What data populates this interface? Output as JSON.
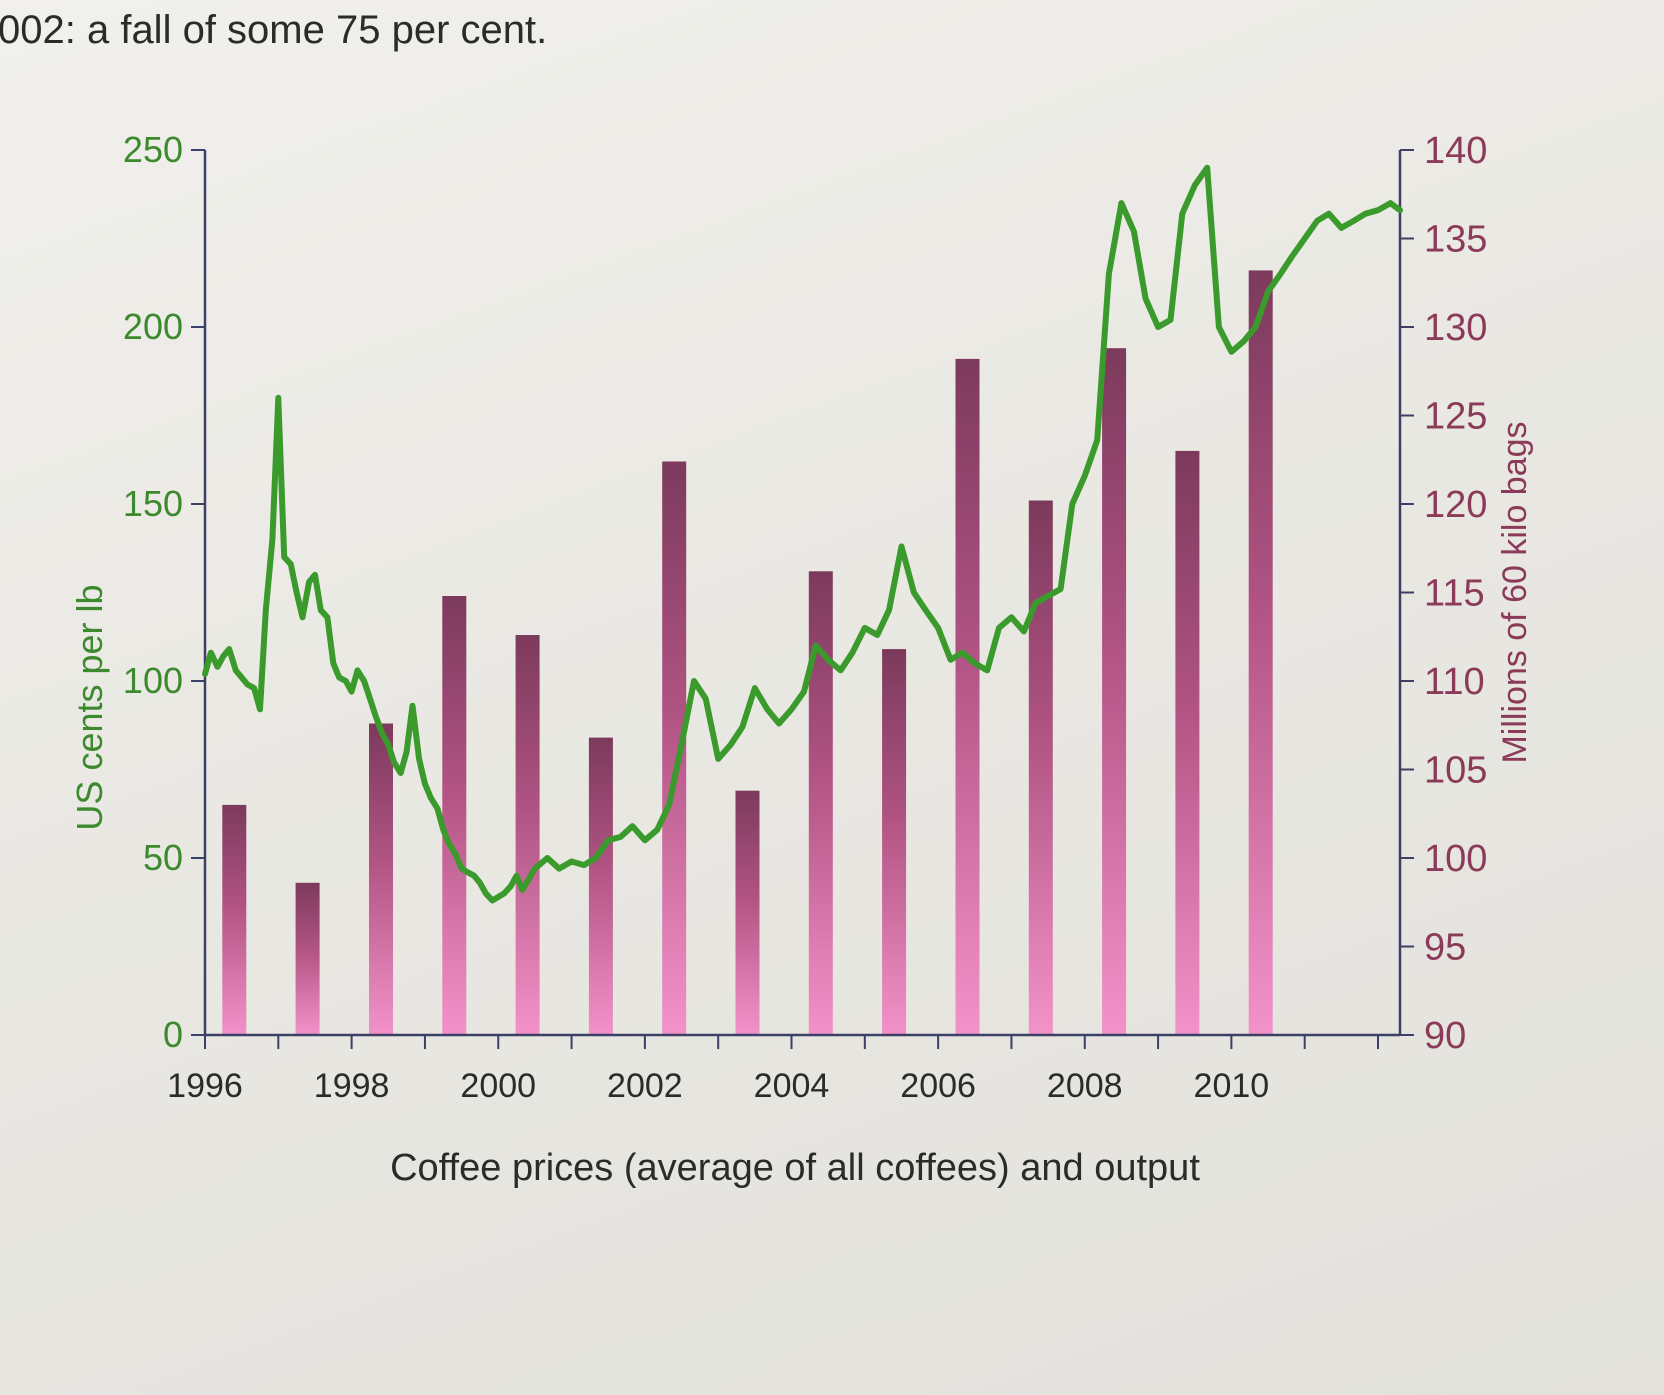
{
  "intro_text": "002: a fall of some 75 per cent.",
  "chart_data": {
    "type": "bar+line",
    "title": "",
    "caption": "Coffee prices (average of all coffees) and output",
    "xlabel": "",
    "ylabel_left": "US cents per lb",
    "ylabel_right": "Millions of 60 kilo bags",
    "x_tick_labels": [
      "1996",
      "1998",
      "2000",
      "2002",
      "2004",
      "2006",
      "2008",
      "2010"
    ],
    "x_ticks": [
      1996,
      1998,
      2000,
      2002,
      2004,
      2006,
      2008,
      2010
    ],
    "xlim": [
      1996,
      2012.3
    ],
    "ylim_left": [
      0,
      250
    ],
    "yticks_left": [
      0,
      50,
      100,
      150,
      200,
      250
    ],
    "ylim_right": [
      90,
      140
    ],
    "yticks_right": [
      90,
      95,
      100,
      105,
      110,
      115,
      120,
      125,
      130,
      135,
      140
    ],
    "grid": false,
    "colors": {
      "line": "#3a9a2c",
      "bar_top": "#8a3f63",
      "bar_bottom": "#f08cc4",
      "left_axis_text": "#3d8a2e",
      "right_axis_text": "#8b3a5a",
      "axis_line": "#3c3f66"
    },
    "bar_series": {
      "axis": "right",
      "unit": "Millions of 60 kilo bags",
      "x": [
        1996.4,
        1997.4,
        1998.4,
        1999.4,
        2000.4,
        2001.4,
        2002.4,
        2003.4,
        2004.4,
        2005.4,
        2006.4,
        2007.4,
        2008.4,
        2009.4,
        2010.4
      ],
      "values": [
        103.0,
        98.6,
        107.6,
        114.8,
        112.6,
        106.8,
        122.4,
        103.8,
        116.2,
        111.8,
        128.2,
        120.2,
        128.8,
        123.0,
        133.2
      ]
    },
    "line_series": {
      "axis": "left",
      "unit": "US cents per lb",
      "x": [
        1996.0,
        1996.08,
        1996.17,
        1996.25,
        1996.33,
        1996.42,
        1996.5,
        1996.58,
        1996.67,
        1996.75,
        1996.83,
        1996.92,
        1997.0,
        1997.08,
        1997.17,
        1997.25,
        1997.33,
        1997.42,
        1997.5,
        1997.58,
        1997.67,
        1997.75,
        1997.83,
        1997.92,
        1998.0,
        1998.08,
        1998.17,
        1998.25,
        1998.33,
        1998.42,
        1998.5,
        1998.58,
        1998.67,
        1998.75,
        1998.83,
        1998.92,
        1999.0,
        1999.08,
        1999.17,
        1999.25,
        1999.33,
        1999.42,
        1999.5,
        1999.58,
        1999.67,
        1999.75,
        1999.83,
        1999.92,
        2000.0,
        2000.08,
        2000.17,
        2000.25,
        2000.33,
        2000.5,
        2000.67,
        2000.83,
        2001.0,
        2001.17,
        2001.33,
        2001.5,
        2001.67,
        2001.83,
        2002.0,
        2002.17,
        2002.33,
        2002.5,
        2002.67,
        2002.83,
        2003.0,
        2003.17,
        2003.33,
        2003.5,
        2003.67,
        2003.83,
        2004.0,
        2004.17,
        2004.33,
        2004.5,
        2004.67,
        2004.83,
        2005.0,
        2005.17,
        2005.33,
        2005.5,
        2005.67,
        2005.83,
        2006.0,
        2006.17,
        2006.33,
        2006.5,
        2006.67,
        2006.83,
        2007.0,
        2007.17,
        2007.33,
        2007.5,
        2007.67,
        2007.83,
        2008.0,
        2008.17,
        2008.33,
        2008.5,
        2008.67,
        2008.83,
        2009.0,
        2009.17,
        2009.33,
        2009.5,
        2009.67,
        2009.83,
        2010.0,
        2010.17,
        2010.33,
        2010.5,
        2010.67,
        2010.83,
        2011.0,
        2011.17,
        2011.33,
        2011.5,
        2011.67,
        2011.83,
        2012.0,
        2012.17,
        2012.3
      ],
      "values": [
        102,
        108,
        104,
        107,
        109,
        103,
        101,
        99,
        98,
        92,
        120,
        140,
        180,
        135,
        133,
        125,
        118,
        128,
        130,
        120,
        118,
        105,
        101,
        100,
        97,
        103,
        100,
        95,
        90,
        85,
        82,
        77,
        74,
        80,
        93,
        78,
        71,
        67,
        64,
        58,
        54,
        51,
        47,
        46,
        45,
        43,
        40,
        38,
        39,
        40,
        42,
        45,
        41,
        47,
        50,
        47,
        49,
        48,
        50,
        55,
        56,
        59,
        55,
        58,
        65,
        82,
        100,
        95,
        78,
        82,
        87,
        98,
        92,
        88,
        92,
        97,
        110,
        106,
        103,
        108,
        115,
        113,
        120,
        138,
        125,
        120,
        115,
        106,
        108,
        105,
        103,
        115,
        118,
        114,
        122,
        124,
        126,
        150,
        158,
        168,
        215,
        235,
        227,
        208,
        200,
        202,
        232,
        240,
        245,
        200,
        193,
        196,
        200,
        210,
        215,
        220,
        225,
        230,
        232,
        228,
        230,
        232,
        233,
        235,
        233
      ]
    }
  }
}
